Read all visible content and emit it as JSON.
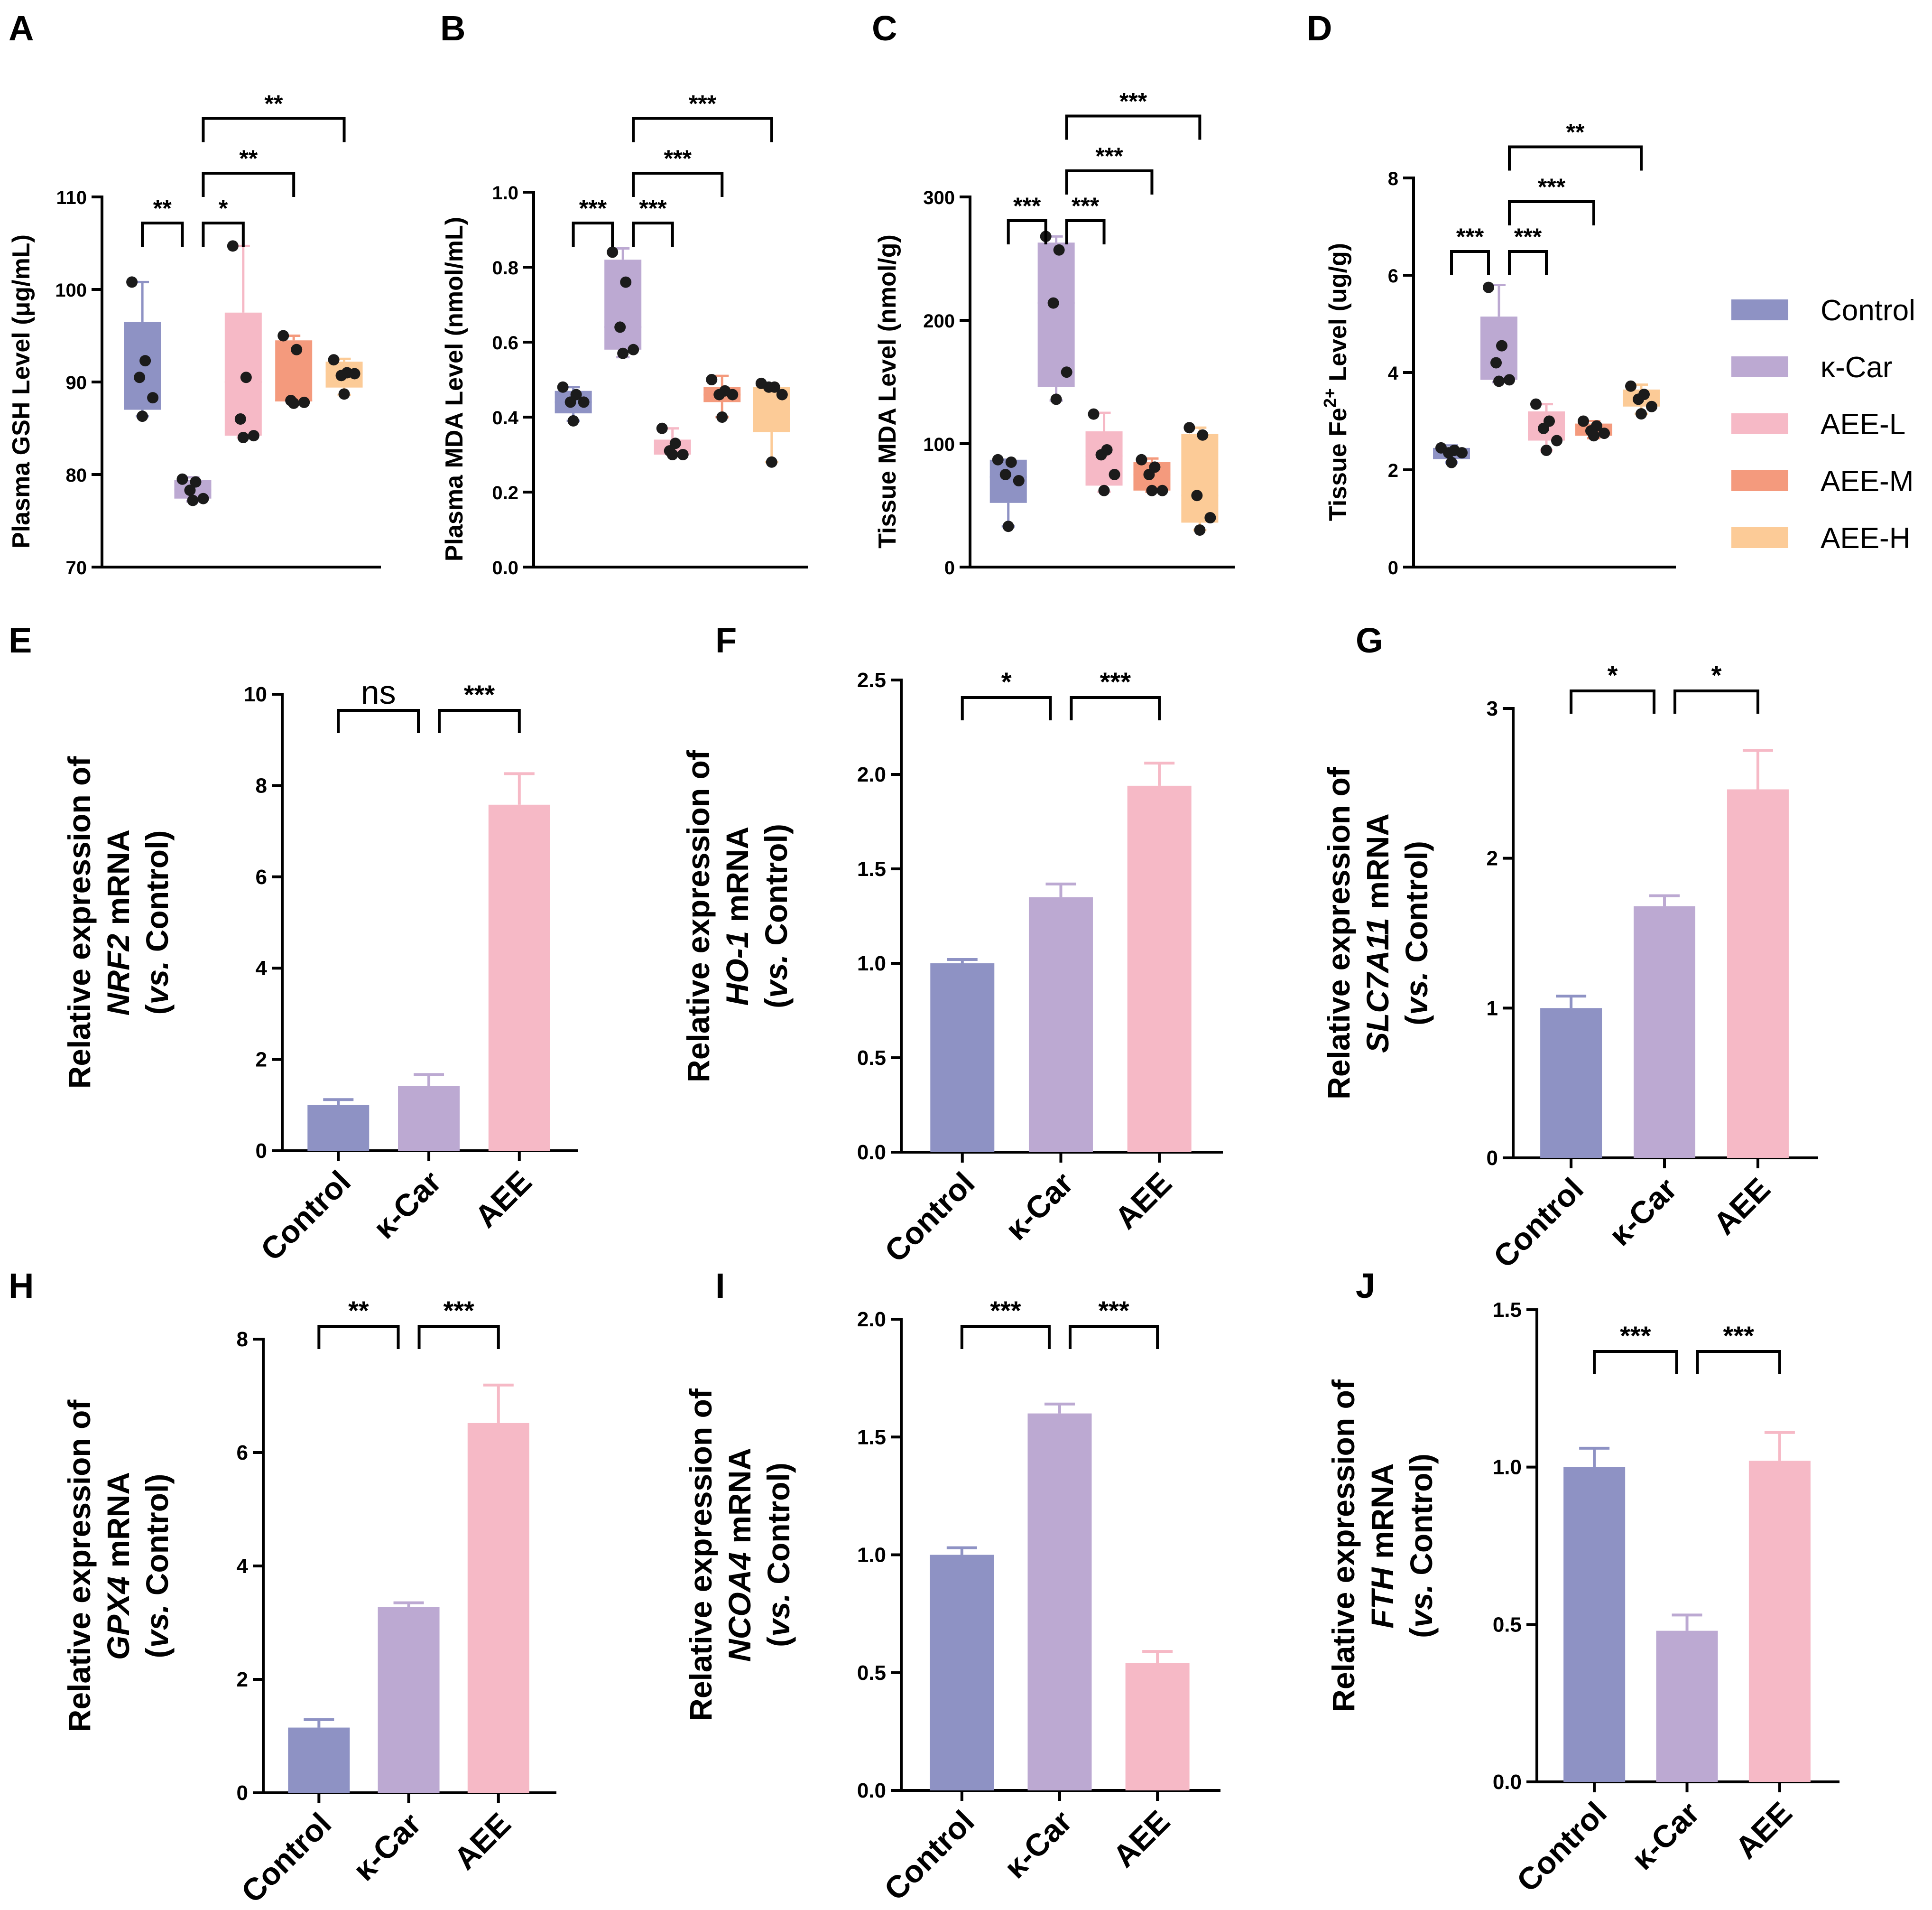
{
  "colors": {
    "Control": "#8e92c4",
    "κ-Car": "#bca9d2",
    "AEE-L": "#f6b9c6",
    "AEE-M": "#f49a7d",
    "AEE-H": "#fccb97",
    "AEE": "#f6b9c6"
  },
  "legend": {
    "items": [
      {
        "label": "Control",
        "color": "#8e92c4"
      },
      {
        "label": "κ-Car",
        "color": "#bca9d2"
      },
      {
        "label": "AEE-L",
        "color": "#f6b9c6"
      },
      {
        "label": "AEE-M",
        "color": "#f49a7d"
      },
      {
        "label": "AEE-H",
        "color": "#fccb97"
      }
    ]
  },
  "chart_data": [
    {
      "panel": "A",
      "type": "box",
      "ylabel": "Plasma GSH Level (μg/mL)",
      "ylim": [
        70,
        110
      ],
      "yticks": [
        "70",
        "80",
        "90",
        "100",
        "110"
      ],
      "groups": [
        "Control",
        "κ-Car",
        "AEE-L",
        "AEE-M",
        "AEE-H"
      ],
      "boxes": [
        {
          "min": 86.3,
          "q1": 87.0,
          "median": 90.5,
          "q3": 96.5,
          "max": 100.8,
          "points": [
            100.8,
            92.3,
            90.5,
            88.3,
            86.3
          ]
        },
        {
          "min": 77.1,
          "q1": 77.4,
          "median": 78.3,
          "q3": 79.4,
          "max": 79.7,
          "points": [
            79.5,
            79.2,
            78.3,
            77.4,
            77.2
          ]
        },
        {
          "min": 84.0,
          "q1": 84.2,
          "median": 90.0,
          "q3": 97.5,
          "max": 104.7,
          "points": [
            104.7,
            90.5,
            86.0,
            84.2,
            84.0
          ]
        },
        {
          "min": 87.7,
          "q1": 87.9,
          "median": 88.0,
          "q3": 94.5,
          "max": 95.0,
          "points": [
            95.0,
            93.5,
            88.0,
            87.8,
            87.7
          ]
        },
        {
          "min": 88.6,
          "q1": 89.4,
          "median": 91.2,
          "q3": 92.2,
          "max": 92.5,
          "points": [
            92.4,
            91.0,
            90.7,
            90.9,
            88.7
          ]
        }
      ],
      "significance": [
        {
          "from": 0,
          "to": 1,
          "label": "**"
        },
        {
          "from": 1,
          "to": 2,
          "label": "*"
        },
        {
          "from": 1,
          "to": 3,
          "label": "**"
        },
        {
          "from": 1,
          "to": 4,
          "label": "**"
        }
      ]
    },
    {
      "panel": "B",
      "type": "box",
      "ylabel": "Plasma MDA Level (nmol/mL)",
      "ylim": [
        0,
        1.0
      ],
      "yticks": [
        "0.0",
        "0.2",
        "0.4",
        "0.6",
        "0.8",
        "1.0"
      ],
      "groups": [
        "Control",
        "κ-Car",
        "AEE-L",
        "AEE-M",
        "AEE-H"
      ],
      "boxes": [
        {
          "min": 0.39,
          "q1": 0.41,
          "median": 0.44,
          "q3": 0.47,
          "max": 0.48,
          "points": [
            0.48,
            0.46,
            0.44,
            0.44,
            0.39
          ]
        },
        {
          "min": 0.56,
          "q1": 0.58,
          "median": 0.64,
          "q3": 0.82,
          "max": 0.85,
          "points": [
            0.84,
            0.76,
            0.64,
            0.58,
            0.57
          ]
        },
        {
          "min": 0.3,
          "q1": 0.3,
          "median": 0.31,
          "q3": 0.34,
          "max": 0.37,
          "points": [
            0.37,
            0.33,
            0.31,
            0.3,
            0.3
          ]
        },
        {
          "min": 0.4,
          "q1": 0.44,
          "median": 0.46,
          "q3": 0.48,
          "max": 0.51,
          "points": [
            0.5,
            0.47,
            0.46,
            0.46,
            0.4
          ]
        },
        {
          "min": 0.28,
          "q1": 0.36,
          "median": 0.46,
          "q3": 0.48,
          "max": 0.49,
          "points": [
            0.49,
            0.48,
            0.48,
            0.46,
            0.28
          ]
        }
      ],
      "significance": [
        {
          "from": 0,
          "to": 1,
          "label": "***"
        },
        {
          "from": 1,
          "to": 2,
          "label": "***"
        },
        {
          "from": 1,
          "to": 3,
          "label": "***"
        },
        {
          "from": 1,
          "to": 4,
          "label": "***"
        }
      ]
    },
    {
      "panel": "C",
      "type": "box",
      "ylabel": "Tissue MDA Level (nmol/g)",
      "ylim": [
        0,
        300
      ],
      "yticks": [
        "0",
        "100",
        "200",
        "300"
      ],
      "groups": [
        "Control",
        "κ-Car",
        "AEE-L",
        "AEE-M",
        "AEE-H"
      ],
      "boxes": [
        {
          "min": 33,
          "q1": 52,
          "median": 73,
          "q3": 87,
          "max": 87,
          "points": [
            87,
            85,
            75,
            70,
            33
          ]
        },
        {
          "min": 135,
          "q1": 146,
          "median": 214,
          "q3": 263,
          "max": 268,
          "points": [
            268,
            257,
            214,
            158,
            136
          ]
        },
        {
          "min": 61,
          "q1": 66,
          "median": 90,
          "q3": 110,
          "max": 125,
          "points": [
            124,
            95,
            91,
            75,
            62
          ]
        },
        {
          "min": 61,
          "q1": 62,
          "median": 75,
          "q3": 85,
          "max": 88,
          "points": [
            87,
            81,
            75,
            62,
            62
          ]
        },
        {
          "min": 30,
          "q1": 36,
          "median": 58,
          "q3": 108,
          "max": 113,
          "points": [
            113,
            107,
            58,
            40,
            30
          ]
        }
      ],
      "significance": [
        {
          "from": 0,
          "to": 1,
          "label": "***"
        },
        {
          "from": 1,
          "to": 2,
          "label": "***"
        },
        {
          "from": 1,
          "to": 3,
          "label": "***"
        },
        {
          "from": 1,
          "to": 4,
          "label": "***"
        }
      ]
    },
    {
      "panel": "D",
      "type": "box",
      "ylabel_pre": "Tissue Fe",
      "ylabel_sup": "2+",
      "ylabel_post": " Level (ug/g)",
      "ylim": [
        0,
        8
      ],
      "yticks": [
        "0",
        "2",
        "4",
        "6",
        "8"
      ],
      "groups": [
        "Control",
        "κ-Car",
        "AEE-L",
        "AEE-M",
        "AEE-H"
      ],
      "boxes": [
        {
          "min": 2.15,
          "q1": 2.22,
          "median": 2.35,
          "q3": 2.45,
          "max": 2.5,
          "points": [
            2.45,
            2.4,
            2.35,
            2.35,
            2.15
          ]
        },
        {
          "min": 3.8,
          "q1": 3.85,
          "median": 4.2,
          "q3": 5.15,
          "max": 5.8,
          "points": [
            5.75,
            4.55,
            4.2,
            3.85,
            3.82
          ]
        },
        {
          "min": 2.4,
          "q1": 2.6,
          "median": 2.9,
          "q3": 3.2,
          "max": 3.35,
          "points": [
            3.35,
            3.0,
            2.85,
            2.6,
            2.4
          ]
        },
        {
          "min": 2.65,
          "q1": 2.7,
          "median": 2.8,
          "q3": 2.95,
          "max": 3.0,
          "points": [
            3.0,
            2.9,
            2.8,
            2.75,
            2.7
          ]
        },
        {
          "min": 3.15,
          "q1": 3.3,
          "median": 3.45,
          "q3": 3.65,
          "max": 3.75,
          "points": [
            3.72,
            3.55,
            3.45,
            3.3,
            3.15
          ]
        }
      ],
      "significance": [
        {
          "from": 0,
          "to": 1,
          "label": "***"
        },
        {
          "from": 1,
          "to": 2,
          "label": "***"
        },
        {
          "from": 1,
          "to": 3,
          "label": "***"
        },
        {
          "from": 1,
          "to": 4,
          "label": "**"
        }
      ]
    },
    {
      "panel": "E",
      "type": "bar",
      "gene": "NRF2",
      "ylabel_line1": "Relative expression of",
      "ylabel_line2_suffix": " mRNA",
      "ylabel_line3_italic": "vs.",
      "ylabel_line3_rest": " Control)",
      "ylabel_line3_open": "(",
      "ylim": [
        0,
        10
      ],
      "yticks": [
        "0",
        "2",
        "4",
        "6",
        "8",
        "10"
      ],
      "categories": [
        "Control",
        "κ-Car",
        "AEE"
      ],
      "values": [
        1.0,
        1.42,
        7.58
      ],
      "errors": [
        0.12,
        0.25,
        0.68
      ],
      "significance": [
        {
          "from": 0,
          "to": 1,
          "label": "ns"
        },
        {
          "from": 1,
          "to": 2,
          "label": "***"
        }
      ]
    },
    {
      "panel": "F",
      "type": "bar",
      "gene": "HO-1",
      "ylabel_line1": "Relative expression of",
      "ylabel_line2_suffix": " mRNA",
      "ylabel_line3_italic": "vs.",
      "ylabel_line3_rest": " Control)",
      "ylabel_line3_open": "(",
      "ylim": [
        0,
        2.5
      ],
      "yticks": [
        "0.0",
        "0.5",
        "1.0",
        "1.5",
        "2.0",
        "2.5"
      ],
      "categories": [
        "Control",
        "κ-Car",
        "AEE"
      ],
      "values": [
        1.0,
        1.35,
        1.94
      ],
      "errors": [
        0.02,
        0.07,
        0.12
      ],
      "significance": [
        {
          "from": 0,
          "to": 1,
          "label": "*"
        },
        {
          "from": 1,
          "to": 2,
          "label": "***"
        }
      ]
    },
    {
      "panel": "G",
      "type": "bar",
      "gene": "SLC7A11",
      "ylabel_line1": "Relative expression of",
      "ylabel_line2_suffix": " mRNA",
      "ylabel_line3_italic": "vs.",
      "ylabel_line3_rest": " Control)",
      "ylabel_line3_open": "(",
      "ylim": [
        0,
        3
      ],
      "yticks": [
        "0",
        "1",
        "2",
        "3"
      ],
      "categories": [
        "Control",
        "κ-Car",
        "AEE"
      ],
      "values": [
        1.0,
        1.68,
        2.46
      ],
      "errors": [
        0.08,
        0.07,
        0.26
      ],
      "significance": [
        {
          "from": 0,
          "to": 1,
          "label": "*"
        },
        {
          "from": 1,
          "to": 2,
          "label": "*"
        }
      ]
    },
    {
      "panel": "H",
      "type": "bar",
      "gene": "GPX4",
      "ylabel_line1": "Relative expression of",
      "ylabel_line2_suffix": " mRNA",
      "ylabel_line3_italic": "vs.",
      "ylabel_line3_rest": " Control)",
      "ylabel_line3_open": "(",
      "ylim": [
        0,
        8
      ],
      "yticks": [
        "0",
        "2",
        "4",
        "6",
        "8"
      ],
      "categories": [
        "Control",
        "κ-Car",
        "AEE"
      ],
      "values": [
        1.15,
        3.28,
        6.52
      ],
      "errors": [
        0.14,
        0.07,
        0.67
      ],
      "significance": [
        {
          "from": 0,
          "to": 1,
          "label": "**"
        },
        {
          "from": 1,
          "to": 2,
          "label": "***"
        }
      ]
    },
    {
      "panel": "I",
      "type": "bar",
      "gene": "NCOA4",
      "ylabel_line1": "Relative expression of",
      "ylabel_line2_suffix": " mRNA",
      "ylabel_line3_italic": "vs.",
      "ylabel_line3_rest": " Control)",
      "ylabel_line3_open": "(",
      "ylim": [
        0,
        2.0
      ],
      "yticks": [
        "0.0",
        "0.5",
        "1.0",
        "1.5",
        "2.0"
      ],
      "categories": [
        "Control",
        "κ-Car",
        "AEE"
      ],
      "values": [
        1.0,
        1.6,
        0.54
      ],
      "errors": [
        0.03,
        0.04,
        0.05
      ],
      "significance": [
        {
          "from": 0,
          "to": 1,
          "label": "***"
        },
        {
          "from": 1,
          "to": 2,
          "label": "***"
        }
      ]
    },
    {
      "panel": "J",
      "type": "bar",
      "gene": "FTH",
      "ylabel_line1": "Relative expression of",
      "ylabel_line2_suffix": " mRNA",
      "ylabel_line3_italic": "vs.",
      "ylabel_line3_rest": " Control)",
      "ylabel_line3_open": "(",
      "ylim": [
        0,
        1.5
      ],
      "yticks": [
        "0.0",
        "0.5",
        "1.0",
        "1.5"
      ],
      "categories": [
        "Control",
        "κ-Car",
        "AEE"
      ],
      "values": [
        1.0,
        0.48,
        1.02
      ],
      "errors": [
        0.06,
        0.05,
        0.09
      ],
      "significance": [
        {
          "from": 0,
          "to": 1,
          "label": "***"
        },
        {
          "from": 1,
          "to": 2,
          "label": "***"
        }
      ]
    }
  ]
}
